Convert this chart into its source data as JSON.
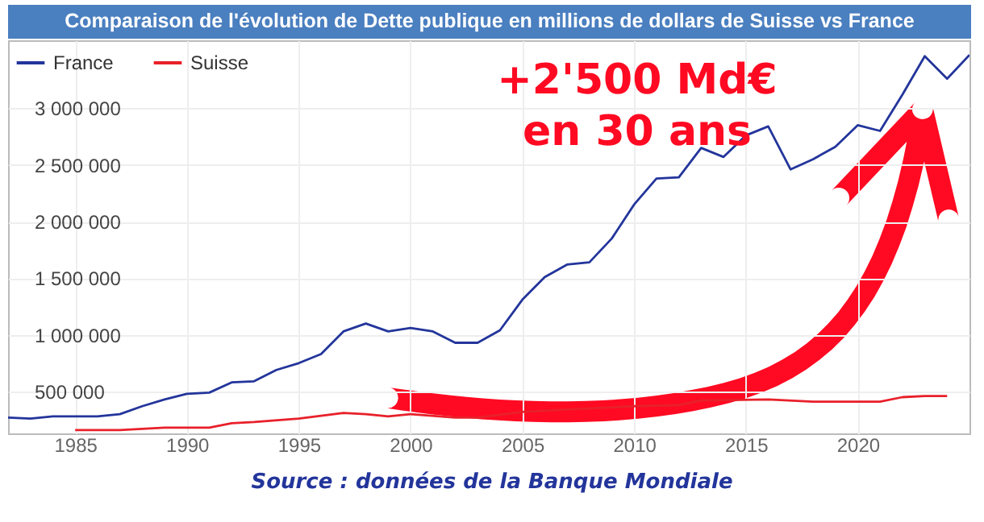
{
  "chart_data": {
    "type": "line",
    "title": "Comparaison de l'évolution de Dette publique en millions de dollars de Suisse vs France",
    "xlim": [
      1982,
      2025
    ],
    "xticks": [
      1985,
      1990,
      1995,
      2000,
      2005,
      2010,
      2015,
      2020
    ],
    "ylim": [
      130000,
      3600000
    ],
    "yticks": [
      {
        "value": 500000,
        "label": "500 000"
      },
      {
        "value": 1000000,
        "label": "1 000 000"
      },
      {
        "value": 1500000,
        "label": "1 500 000"
      },
      {
        "value": 2000000,
        "label": "2 000 000"
      },
      {
        "value": 2500000,
        "label": "2 500 000"
      },
      {
        "value": 3000000,
        "label": "3 000 000"
      }
    ],
    "grid": true,
    "legend": "top left",
    "line_style": "solid",
    "marker": "none",
    "series": [
      {
        "name": "France",
        "color": "#23359b",
        "x": [
          1982,
          1983,
          1984,
          1985,
          1986,
          1987,
          1988,
          1989,
          1990,
          1991,
          1992,
          1993,
          1994,
          1995,
          1996,
          1997,
          1998,
          1999,
          2000,
          2001,
          2002,
          2003,
          2004,
          2005,
          2006,
          2007,
          2008,
          2009,
          2010,
          2011,
          2012,
          2013,
          2014,
          2015,
          2016,
          2017,
          2018,
          2019,
          2020,
          2021,
          2022,
          2023,
          2024,
          2025
        ],
        "values": [
          270000,
          260000,
          280000,
          280000,
          280000,
          300000,
          370000,
          430000,
          480000,
          490000,
          580000,
          590000,
          690000,
          750000,
          830000,
          1030000,
          1100000,
          1030000,
          1060000,
          1030000,
          930000,
          930000,
          1040000,
          1310000,
          1510000,
          1620000,
          1640000,
          1850000,
          2150000,
          2380000,
          2390000,
          2650000,
          2570000,
          2760000,
          2840000,
          2460000,
          2550000,
          2660000,
          2850000,
          2800000,
          3120000,
          3460000,
          3260000,
          3470000
        ]
      },
      {
        "name": "Suisse",
        "color": "#e8202a",
        "x": [
          1985,
          1987,
          1989,
          1991,
          1992,
          1993,
          1995,
          1997,
          1998,
          1999,
          2000,
          2002,
          2003,
          2005,
          2007,
          2010,
          2012,
          2013,
          2016,
          2018,
          2021,
          2022,
          2023,
          2024
        ],
        "values": [
          160000,
          160000,
          180000,
          180000,
          220000,
          230000,
          260000,
          310000,
          300000,
          280000,
          300000,
          270000,
          270000,
          320000,
          340000,
          370000,
          380000,
          420000,
          430000,
          410000,
          410000,
          450000,
          460000,
          460000
        ]
      }
    ],
    "annotations": [
      "+2'500 Md€ en 30 ans",
      "Source : données de la Banque Mondiale"
    ]
  }
}
